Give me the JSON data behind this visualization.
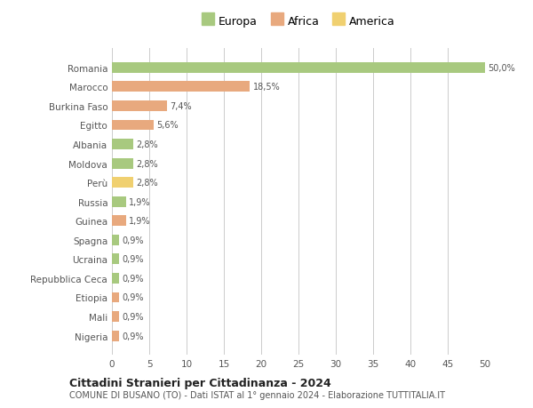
{
  "categories": [
    "Romania",
    "Marocco",
    "Burkina Faso",
    "Egitto",
    "Albania",
    "Moldova",
    "Perù",
    "Russia",
    "Guinea",
    "Spagna",
    "Ucraina",
    "Repubblica Ceca",
    "Etiopia",
    "Mali",
    "Nigeria"
  ],
  "values": [
    50.0,
    18.5,
    7.4,
    5.6,
    2.8,
    2.8,
    2.8,
    1.9,
    1.9,
    0.9,
    0.9,
    0.9,
    0.9,
    0.9,
    0.9
  ],
  "labels": [
    "50,0%",
    "18,5%",
    "7,4%",
    "5,6%",
    "2,8%",
    "2,8%",
    "2,8%",
    "1,9%",
    "1,9%",
    "0,9%",
    "0,9%",
    "0,9%",
    "0,9%",
    "0,9%",
    "0,9%"
  ],
  "continents": [
    "Europa",
    "Africa",
    "Africa",
    "Africa",
    "Europa",
    "Europa",
    "America",
    "Europa",
    "Africa",
    "Europa",
    "Europa",
    "Europa",
    "Africa",
    "Africa",
    "Africa"
  ],
  "colors": {
    "Europa": "#a8c97f",
    "Africa": "#e8a97e",
    "America": "#f0d070"
  },
  "xlim": [
    0,
    50
  ],
  "xticks": [
    0,
    5,
    10,
    15,
    20,
    25,
    30,
    35,
    40,
    45,
    50
  ],
  "title": "Cittadini Stranieri per Cittadinanza - 2024",
  "subtitle": "COMUNE DI BUSANO (TO) - Dati ISTAT al 1° gennaio 2024 - Elaborazione TUTTITALIA.IT",
  "bg_color": "#ffffff",
  "grid_color": "#cccccc",
  "label_color": "#555555",
  "bar_label_color": "#555555",
  "bar_height": 0.55,
  "legend_order": [
    "Europa",
    "Africa",
    "America"
  ]
}
